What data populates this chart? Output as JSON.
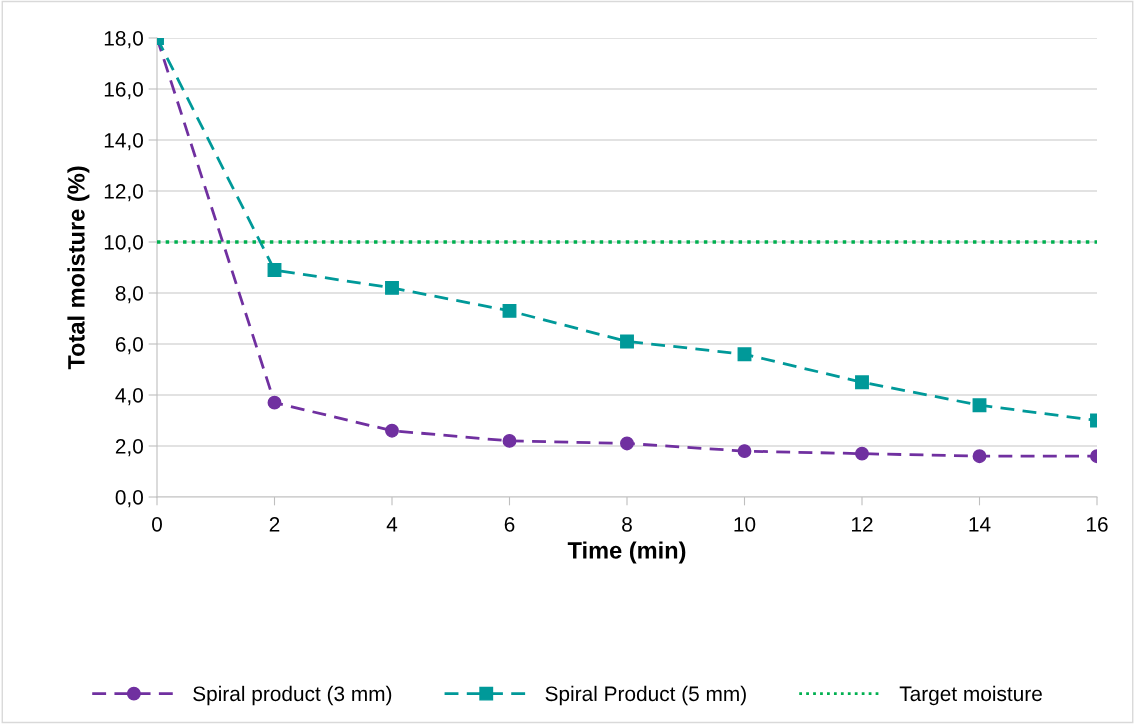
{
  "chart_data": {
    "type": "line",
    "xlabel": "Time (min)",
    "ylabel": "Total moisture (%)",
    "x": [
      0,
      2,
      4,
      6,
      8,
      10,
      12,
      14,
      16
    ],
    "xlim": [
      0,
      16
    ],
    "xticks": [
      0,
      2,
      4,
      6,
      8,
      10,
      12,
      14,
      16
    ],
    "ylim": [
      0,
      18
    ],
    "yticks": [
      {
        "value": 0,
        "label": "0,0"
      },
      {
        "value": 2,
        "label": "2,0"
      },
      {
        "value": 4,
        "label": "4,0"
      },
      {
        "value": 6,
        "label": "6,0"
      },
      {
        "value": 8,
        "label": "8,0"
      },
      {
        "value": 10,
        "label": "10,0"
      },
      {
        "value": 12,
        "label": "12,0"
      },
      {
        "value": 14,
        "label": "14,0"
      },
      {
        "value": 16,
        "label": "16,0"
      },
      {
        "value": 18,
        "label": "18,0"
      }
    ],
    "grid": "y",
    "legend": "bottom",
    "line_style": "dashed",
    "series": [
      {
        "name": "Spiral product (3 mm)",
        "color": "#7030a0",
        "marker": "circle",
        "values": [
          18.0,
          3.7,
          2.6,
          2.2,
          2.1,
          1.8,
          1.7,
          1.6,
          1.6
        ]
      },
      {
        "name": "Spiral Product (5 mm)",
        "color": "#009999",
        "marker": "square",
        "values": [
          18.0,
          8.9,
          8.2,
          7.3,
          6.1,
          5.6,
          4.5,
          3.6,
          3.0
        ]
      },
      {
        "name": "Target moisture",
        "color": "#00b050",
        "marker": "none",
        "line_style": "dotted",
        "values": [
          10,
          10,
          10,
          10,
          10,
          10,
          10,
          10,
          10
        ]
      }
    ]
  }
}
